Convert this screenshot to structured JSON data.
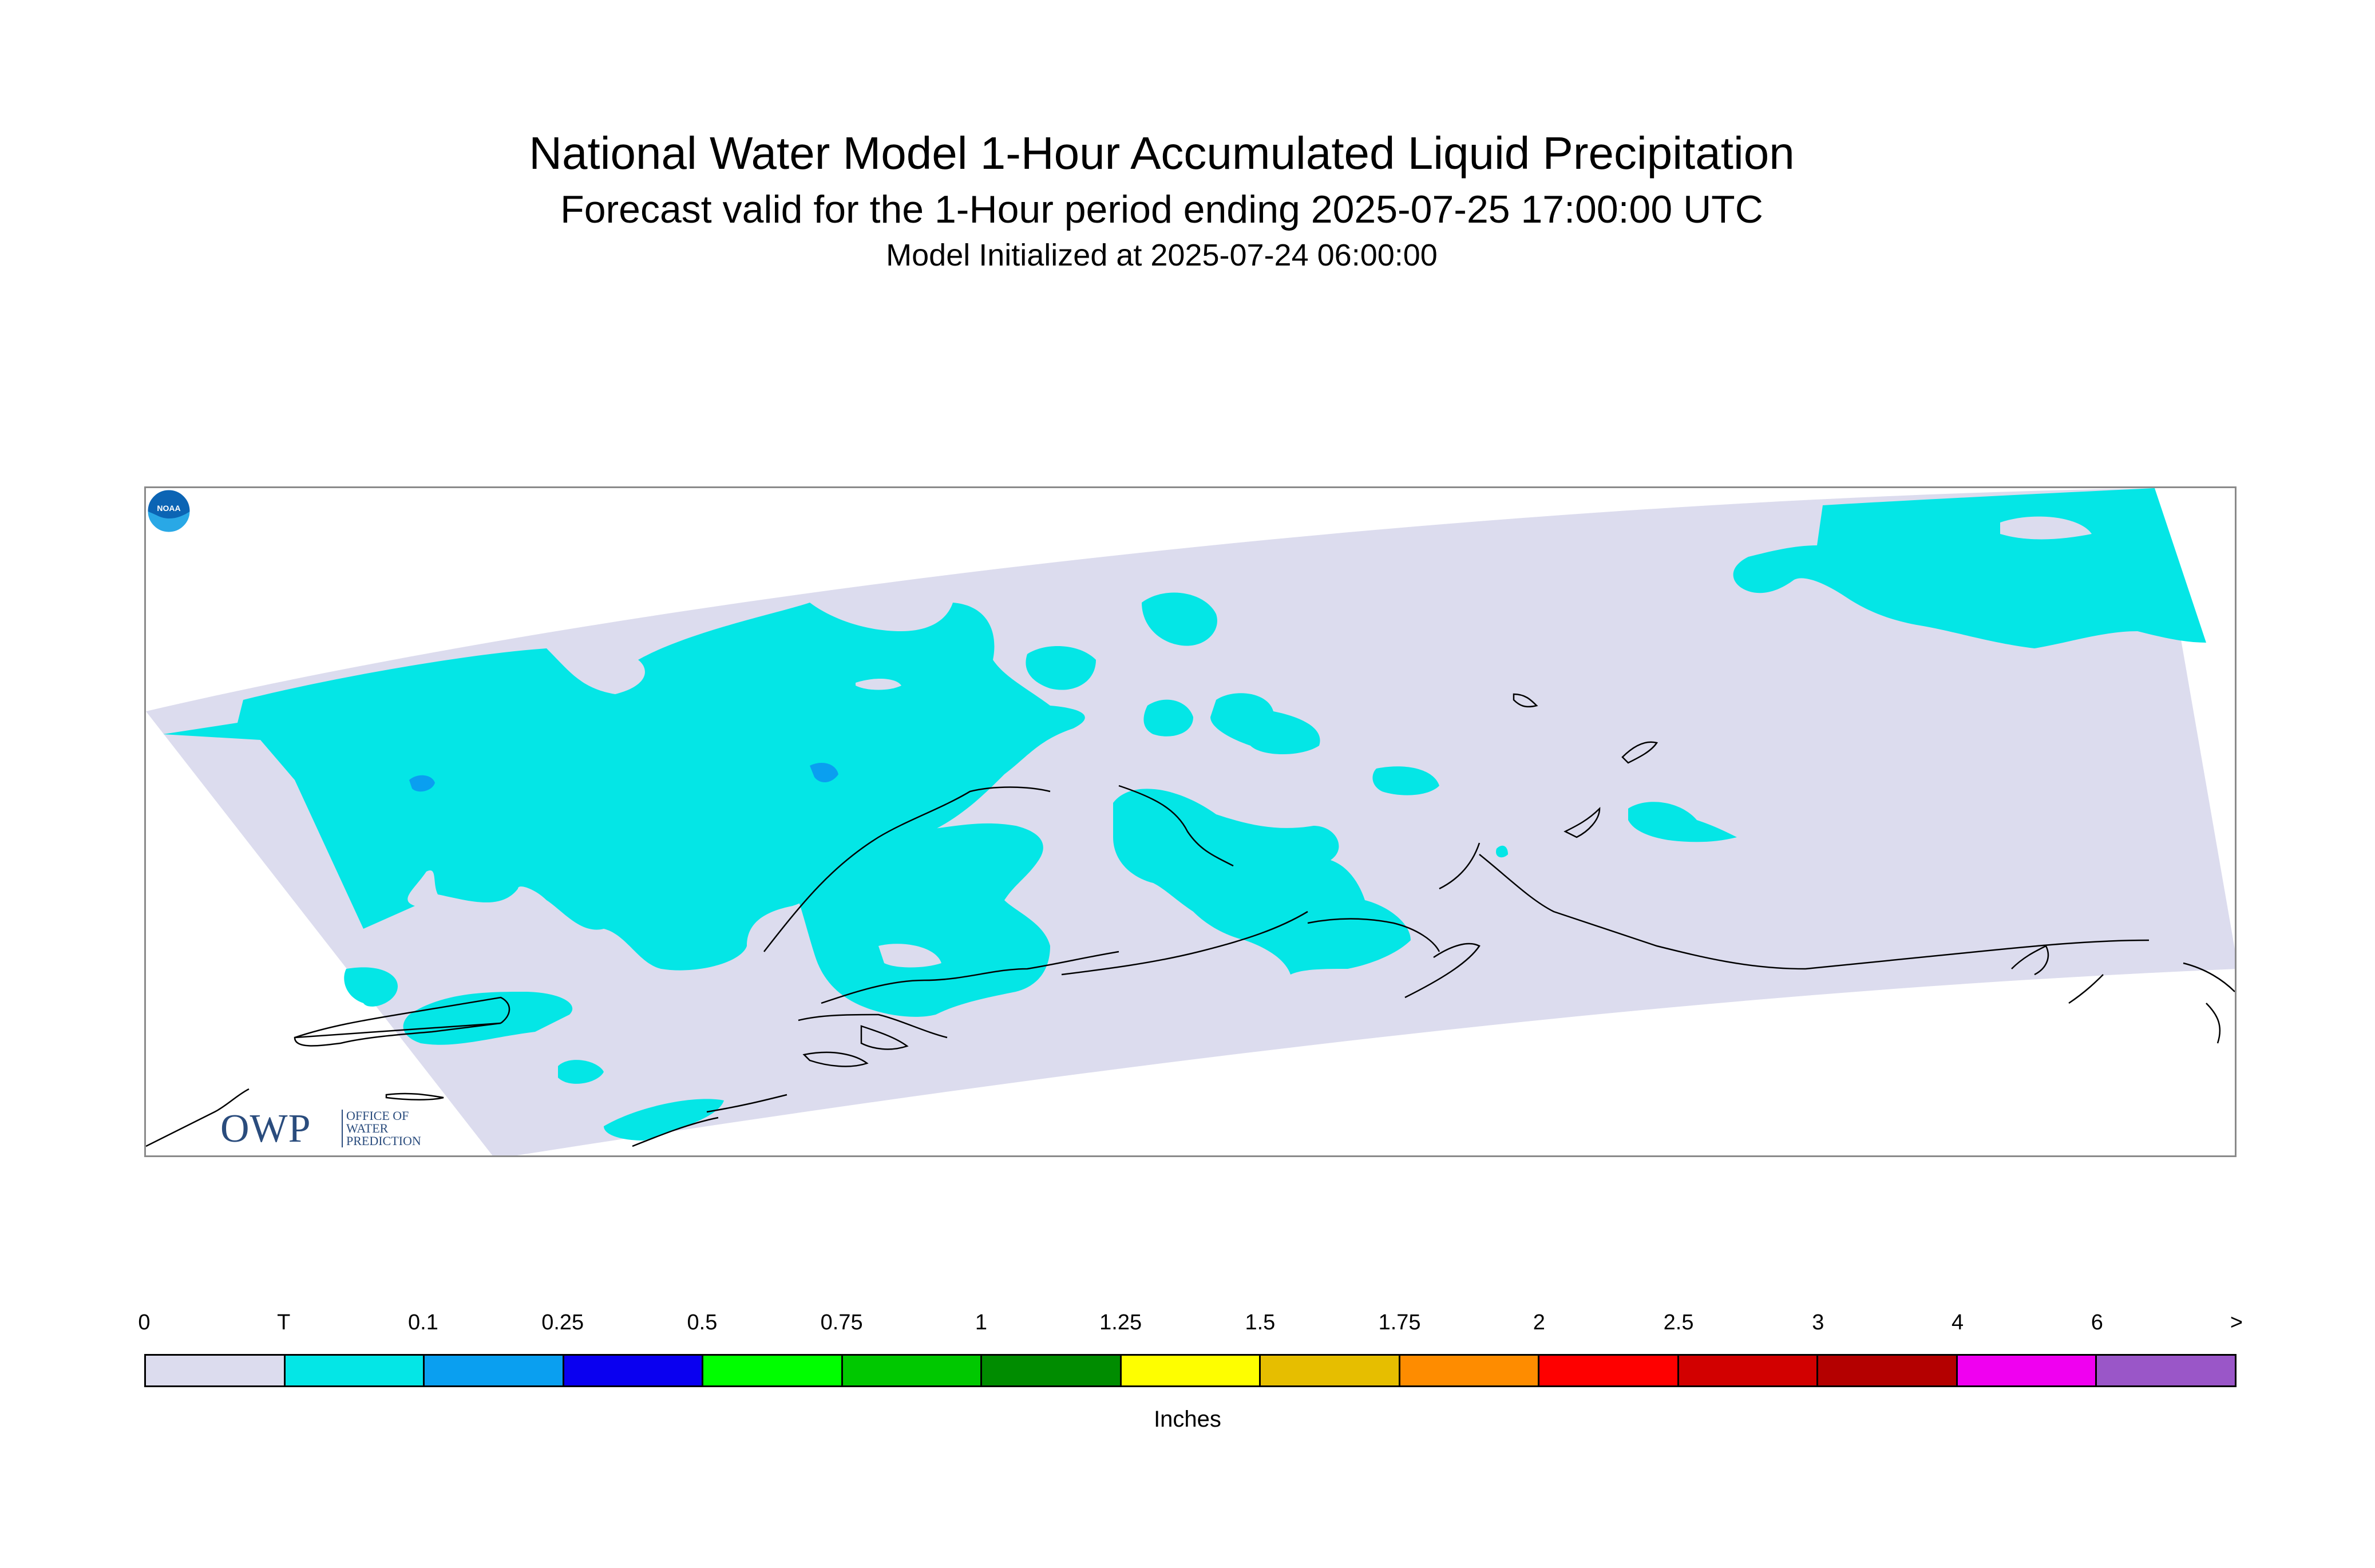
{
  "header": {
    "title": "National Water Model 1-Hour Accumulated Liquid Precipitation",
    "subtitle": "Forecast valid for the 1-Hour period ending 2025-07-25 17:00:00 UTC",
    "init_line": "Model Initialized at 2025-07-24 06:00:00"
  },
  "map": {
    "domain_fill_color": "#dcdcee",
    "precip_fill_color": "#04e6e6",
    "precip_heavier_color": "#0a9ff0",
    "coastline_color": "#000000"
  },
  "logos": {
    "owp": {
      "big_text": "OWP",
      "small_line1": "OFFICE OF",
      "small_line2": "WATER",
      "small_line3": "PREDICTION"
    },
    "noaa": {
      "text": "NOAA",
      "icon": "noaa-logo-icon"
    }
  },
  "legend": {
    "units": "Inches",
    "ticks": [
      "0",
      "T",
      "0.1",
      "0.25",
      "0.5",
      "0.75",
      "1",
      "1.25",
      "1.5",
      "1.75",
      "2",
      "2.5",
      "3",
      "4",
      "6",
      ">"
    ],
    "colors": [
      "#dcdcee",
      "#04e6e6",
      "#0a9ff0",
      "#0a00f0",
      "#00fe00",
      "#00c800",
      "#008c00",
      "#fefe00",
      "#e6be00",
      "#fe8c00",
      "#fe0000",
      "#d20000",
      "#b40000",
      "#f000f0",
      "#9a56c8"
    ]
  }
}
